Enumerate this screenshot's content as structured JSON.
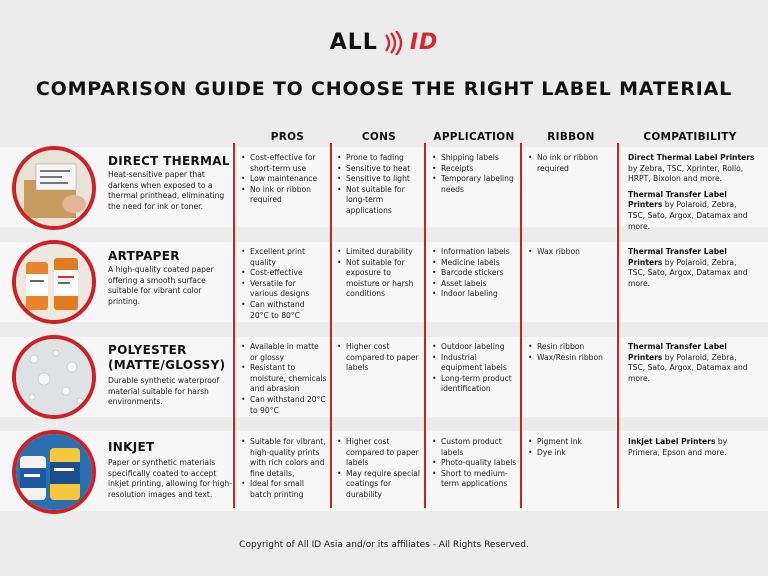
{
  "brand": {
    "left": "ALL",
    "right": "ID"
  },
  "title": "COMPARISON GUIDE TO CHOOSE THE RIGHT LABEL MATERIAL",
  "headers": {
    "pros": "PROS",
    "cons": "CONS",
    "application": "APPLICATION",
    "ribbon": "RIBBON",
    "compatibility": "COMPATIBILITY"
  },
  "rows": [
    {
      "name": "DIRECT THERMAL",
      "description": "Heat-sensitive paper that darkens when exposed to a thermal printhead, eliminating the need for ink or toner.",
      "pros": [
        "Cost-effective for short-term use",
        "Low maintenance",
        "No ink or ribbon required"
      ],
      "cons": [
        "Prone to fading",
        "Sensitive to heat",
        "Sensitive to light",
        "Not suitable for long-term applications"
      ],
      "application": [
        "Shipping labels",
        "Receipts",
        "Temporary labeling needs"
      ],
      "ribbon": [
        "No ink or ribbon required"
      ],
      "compat": [
        {
          "bold": "Direct Thermal Label Printers",
          "rest": " by Zebra, TSC, Xprinter, Rollo, HRPT, Bixolon and more."
        },
        {
          "bold": "Thermal Transfer Label Printers",
          "rest": " by Polaroid, Zebra, TSC, Sato, Argox, Datamax and more."
        }
      ]
    },
    {
      "name": "ARTPAPER",
      "description": "A high-quality coated paper offering a smooth surface suitable for vibrant color printing.",
      "pros": [
        "Excellent print quality",
        "Cost-effective",
        "Versatile for various designs",
        "Can withstand 20°C to 80°C"
      ],
      "cons": [
        "Limited durability",
        "Not suitable for exposure to moisture or harsh conditions"
      ],
      "application": [
        "Information labels",
        "Medicine labels",
        "Barcode stickers",
        "Asset labels",
        "Indoor labeling"
      ],
      "ribbon": [
        "Wax ribbon"
      ],
      "compat": [
        {
          "bold": "Thermal Transfer Label Printers",
          "rest": " by Polaroid, Zebra, TSC, Sato, Argox, Datamax and more."
        }
      ]
    },
    {
      "name": "POLYESTER (MATTE/GLOSSY)",
      "description": "Durable synthetic waterproof material suitable for harsh environments.",
      "pros": [
        "Available in matte or glossy",
        "Resistant to moisture, chemicals and abrasion",
        "Can withstand 20°C to 90°C"
      ],
      "cons": [
        "Higher cost compared to paper labels"
      ],
      "application": [
        "Outdoor labeling",
        "Industrial equipment labels",
        "Long-term product identification"
      ],
      "ribbon": [
        "Resin ribbon",
        "Wax/Resin ribbon"
      ],
      "compat": [
        {
          "bold": "Thermal Transfer Label Printers",
          "rest": " by Polaroid, Zebra, TSC, Sato, Argox, Datamax and more."
        }
      ]
    },
    {
      "name": "INKJET",
      "description": "Paper or synthetic materials specifically coated to accept inkjet printing, allowing for high-resolution images and text.",
      "pros": [
        "Suitable for vibrant, high-quality prints with rich colors and fine details,",
        "Ideal for small batch printing"
      ],
      "cons": [
        "Higher cost compared to paper labels",
        "May require special coatings for durability"
      ],
      "application": [
        "Custom product labels",
        "Photo-quality labels",
        "Short to medium-term applications"
      ],
      "ribbon": [
        "Pigment ink",
        "Dye ink"
      ],
      "compat": [
        {
          "bold": "Inkjet Label Printers",
          "rest": " by Primera, Epson and more."
        }
      ]
    }
  ],
  "footer": "Copyright of All ID Asia and/or its affiliates - All Rights Reserved.",
  "colors": {
    "accent": "#cf2027",
    "background": "#ececec",
    "band": "#f7f7f7"
  },
  "icons": [
    "signal-waves-icon"
  ]
}
